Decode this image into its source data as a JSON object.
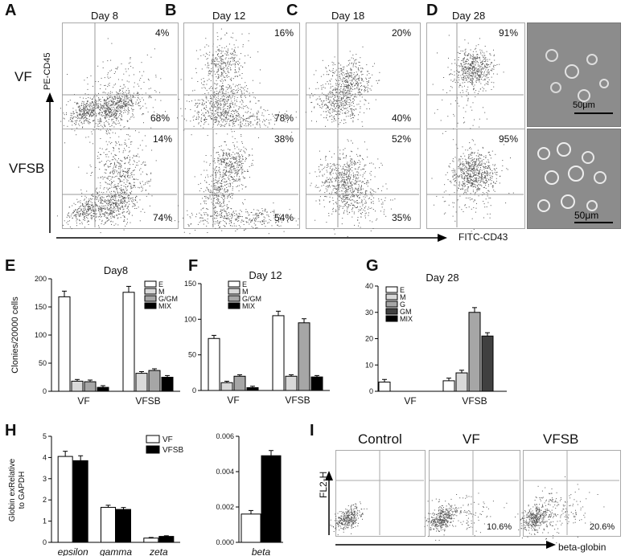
{
  "panel_labels": [
    "A",
    "B",
    "C",
    "D",
    "E",
    "F",
    "G",
    "H",
    "I"
  ],
  "flow": {
    "days": [
      "Day 8",
      "Day 12",
      "Day 18",
      "Day 28"
    ],
    "rows": [
      "VF",
      "VFSB"
    ],
    "y_label": "PE-CD45",
    "x_label": "FITC-CD43",
    "percents": {
      "VF": [
        [
          "4%",
          "68%"
        ],
        [
          "16%",
          "78%"
        ],
        [
          "20%",
          "40%"
        ],
        [
          "91%"
        ]
      ],
      "VFSB": [
        [
          "14%",
          "74%"
        ],
        [
          "38%",
          "54%"
        ],
        [
          "52%",
          "35%"
        ],
        [
          "95%"
        ]
      ]
    },
    "scale_bar": "50μm"
  },
  "legend_E": [
    "E",
    "M",
    "G/GM",
    "MIX"
  ],
  "legend_F": [
    "E",
    "M",
    "G/GM",
    "MIX"
  ],
  "legend_G": [
    "E",
    "M",
    "G",
    "GM",
    "MIX"
  ],
  "legend_H": [
    "VF",
    "VFSB"
  ],
  "colors": {
    "E": "#ffffff",
    "M": "#d9d9d9",
    "G": "#a6a6a6",
    "GM": "#404040",
    "MIX": "#000000"
  },
  "chart_data": [
    {
      "type": "bar",
      "title": "Day8",
      "ylabel": "Clonies/20000 cells",
      "categories": [
        "VF",
        "VFSB"
      ],
      "ylim": [
        0,
        200
      ],
      "yticks": [
        "0",
        "50",
        "100",
        "150",
        "200"
      ],
      "series": [
        {
          "name": "E",
          "values": [
            168,
            176
          ]
        },
        {
          "name": "M",
          "values": [
            18,
            32
          ]
        },
        {
          "name": "G/GM",
          "values": [
            17,
            37
          ]
        },
        {
          "name": "MIX",
          "values": [
            7,
            25
          ]
        }
      ]
    },
    {
      "type": "bar",
      "title": "Day 12",
      "categories": [
        "VF",
        "VFSB"
      ],
      "ylim": [
        0,
        150
      ],
      "yticks": [
        "0",
        "50",
        "100",
        "150"
      ],
      "series": [
        {
          "name": "E",
          "values": [
            73,
            105
          ]
        },
        {
          "name": "M",
          "values": [
            11,
            20
          ]
        },
        {
          "name": "G/GM",
          "values": [
            20,
            95
          ]
        },
        {
          "name": "MIX",
          "values": [
            4,
            19
          ]
        }
      ]
    },
    {
      "type": "bar",
      "title": "Day 28",
      "categories": [
        "VF",
        "VFSB"
      ],
      "ylim": [
        0,
        40
      ],
      "yticks": [
        "0",
        "10",
        "20",
        "30",
        "40"
      ],
      "series": [
        {
          "name": "E",
          "values": [
            3.5,
            4
          ]
        },
        {
          "name": "M",
          "values": [
            0,
            7
          ]
        },
        {
          "name": "G",
          "values": [
            0,
            30
          ]
        },
        {
          "name": "GM",
          "values": [
            0,
            21
          ]
        },
        {
          "name": "MIX",
          "values": [
            0,
            0
          ]
        }
      ]
    },
    {
      "type": "bar",
      "ylabel": "Globin exRelative to GAPDH",
      "categories": [
        "epsilon",
        "gamma",
        "zeta"
      ],
      "ylim": [
        0,
        5
      ],
      "yticks": [
        "0",
        "1",
        "2",
        "3",
        "4",
        "5"
      ],
      "series": [
        {
          "name": "VF",
          "values": [
            4.05,
            1.65,
            0.2
          ]
        },
        {
          "name": "VFSB",
          "values": [
            3.85,
            1.55,
            0.28
          ]
        }
      ]
    },
    {
      "type": "bar",
      "categories": [
        "beta"
      ],
      "ylim": [
        0,
        0.006
      ],
      "yticks": [
        "0.000",
        "0.002",
        "0.004",
        "0.006"
      ],
      "series": [
        {
          "name": "VF",
          "values": [
            0.0016
          ]
        },
        {
          "name": "VFSB",
          "values": [
            0.0049
          ]
        }
      ]
    }
  ],
  "panel_I": {
    "titles": [
      "Control",
      "VF",
      "VFSB"
    ],
    "y_label": "FL2-H",
    "x_label": "beta-globin",
    "percents": [
      "",
      "10.6%",
      "20.6%"
    ]
  }
}
